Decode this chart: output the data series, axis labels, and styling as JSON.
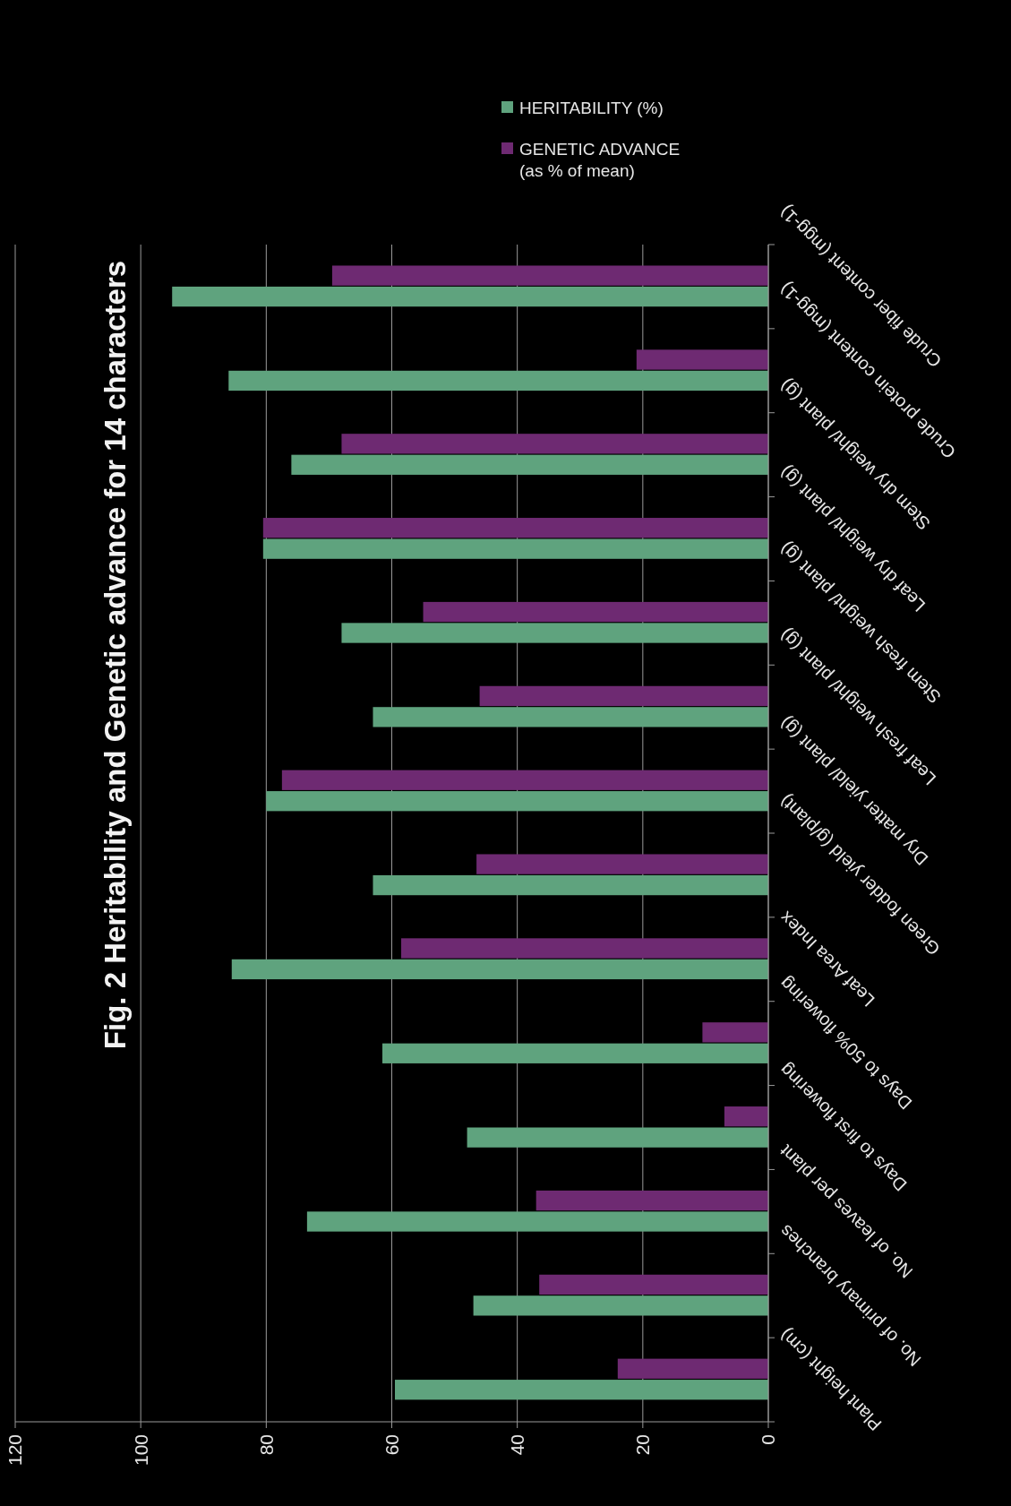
{
  "chart_data": {
    "type": "bar",
    "orientation": "horizontal",
    "title": "Fig. 2 Heritability and Genetic advance for 14 characters",
    "categories": [
      "Crude fiber content (mgg-1)",
      "Crude protein content (mgg-1)",
      "Stem dry weight/ plant (g)",
      "Leaf dry weight/ plant (g)",
      "Stem fresh weight/ plant (g)",
      "Leaf fresh weight/ plant (g)",
      "Dry matter yield/ plant (g)",
      "Green fodder yield (g/plant)",
      "Leaf Area Index",
      "Days to 50% flowering",
      "Days to first flowering",
      "No. of leaves per plant",
      "No. of primary branches",
      "Plant height (cm)"
    ],
    "series": [
      {
        "name": "GENETIC ADVANCE (as % of mean)",
        "color": "#6e2a72",
        "values": [
          69.5,
          21,
          68,
          80.5,
          55,
          46,
          77.5,
          46.5,
          58.5,
          10.5,
          7,
          37,
          36.5,
          24
        ]
      },
      {
        "name": "HERITABILITY (%)",
        "color": "#5fa37e",
        "values": [
          95,
          86,
          76,
          80.5,
          68,
          63,
          80,
          63,
          85.5,
          61.5,
          48,
          73.5,
          47,
          59.5
        ]
      }
    ],
    "xlim": [
      120,
      0
    ],
    "xticks": [
      0,
      20,
      40,
      60,
      80,
      100,
      120
    ],
    "grid": "x",
    "legend": "top right"
  }
}
